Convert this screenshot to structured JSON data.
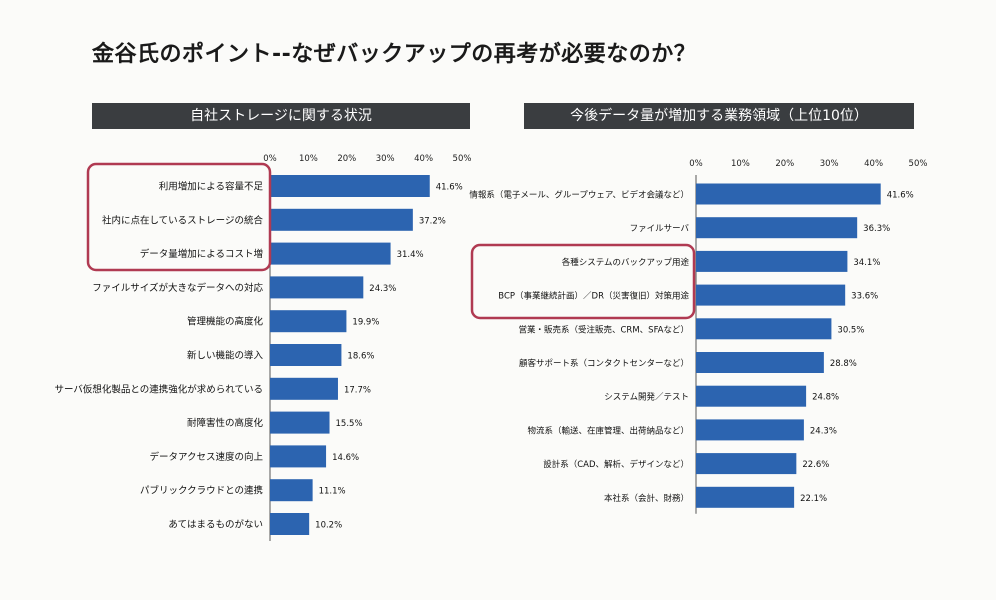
{
  "title": "金谷氏のポイント--なぜバックアップの再考が必要なのか？",
  "colors": {
    "bar": "#2c64b0",
    "highlight": "#b03a52",
    "header_bg": "#3a3d40"
  },
  "chart_data": [
    {
      "type": "bar",
      "orientation": "horizontal",
      "title": "自社ストレージに関する状況",
      "axis_ticks": [
        "0%",
        "10%",
        "20%",
        "30%",
        "40%",
        "50%"
      ],
      "xlim": [
        0,
        50
      ],
      "value_suffix": "%",
      "categories": [
        "利用増加による容量不足",
        "社内に点在しているストレージの統合",
        "データ量増加によるコスト増",
        "ファイルサイズが大きなデータへの対応",
        "管理機能の高度化",
        "新しい機能の導入",
        "サーバ仮想化製品との連携強化が求められている",
        "耐障害性の高度化",
        "データアクセス速度の向上",
        "パブリッククラウドとの連携",
        "あてはまるものがない"
      ],
      "values": [
        41.6,
        37.2,
        31.4,
        24.3,
        19.9,
        18.6,
        17.7,
        15.5,
        14.6,
        11.1,
        10.2
      ],
      "highlighted": [
        0,
        1,
        2
      ]
    },
    {
      "type": "bar",
      "orientation": "horizontal",
      "title": "今後データ量が増加する業務領域（上位10位）",
      "axis_ticks": [
        "0%",
        "10%",
        "20%",
        "30%",
        "40%",
        "50%"
      ],
      "xlim": [
        0,
        50
      ],
      "value_suffix": "%",
      "categories": [
        "情報系（電子メール、グループウェア、ビデオ会議など）",
        "ファイルサーバ",
        "各種システムのバックアップ用途",
        "BCP（事業継続計画）／DR（災害復旧）対策用途",
        "営業・販売系（受注販売、CRM、SFAなど）",
        "顧客サポート系（コンタクトセンターなど）",
        "システム開発／テスト",
        "物流系（輸送、在庫管理、出荷納品など）",
        "設計系（CAD、解析、デザインなど）",
        "本社系（会計、財務）"
      ],
      "values": [
        41.6,
        36.3,
        34.1,
        33.6,
        30.5,
        28.8,
        24.8,
        24.3,
        22.6,
        22.1
      ],
      "highlighted": [
        2,
        3
      ]
    }
  ]
}
